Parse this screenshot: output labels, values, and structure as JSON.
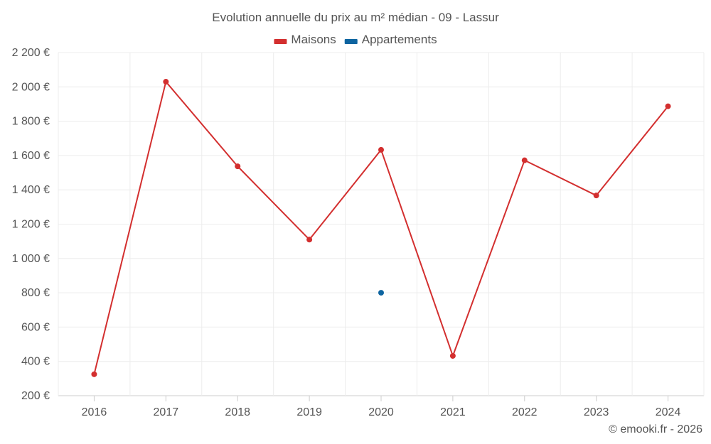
{
  "chart_data": {
    "type": "line",
    "title": "Evolution annuelle du prix au m² médian - 09 - Lassur",
    "categories": [
      "2016",
      "2017",
      "2018",
      "2019",
      "2020",
      "2021",
      "2022",
      "2023",
      "2024"
    ],
    "series": [
      {
        "name": "Maisons",
        "color": "#d32f2f",
        "values": [
          325,
          2030,
          1537,
          1110,
          1633,
          432,
          1572,
          1367,
          1887
        ]
      },
      {
        "name": "Appartements",
        "color": "#0d64a0",
        "values": [
          null,
          null,
          null,
          null,
          800,
          null,
          null,
          null,
          null
        ]
      }
    ],
    "y_ticks": [
      200,
      400,
      600,
      800,
      1000,
      1200,
      1400,
      1600,
      1800,
      2000,
      2200
    ],
    "y_tick_labels": [
      "200 €",
      "400 €",
      "600 €",
      "800 €",
      "1 000 €",
      "1 200 €",
      "1 400 €",
      "1 600 €",
      "1 800 €",
      "2 000 €",
      "2 200 €"
    ],
    "ylim": [
      200,
      2200
    ],
    "grid": true,
    "legend": "top-center",
    "credit": "© emooki.fr - 2026"
  }
}
